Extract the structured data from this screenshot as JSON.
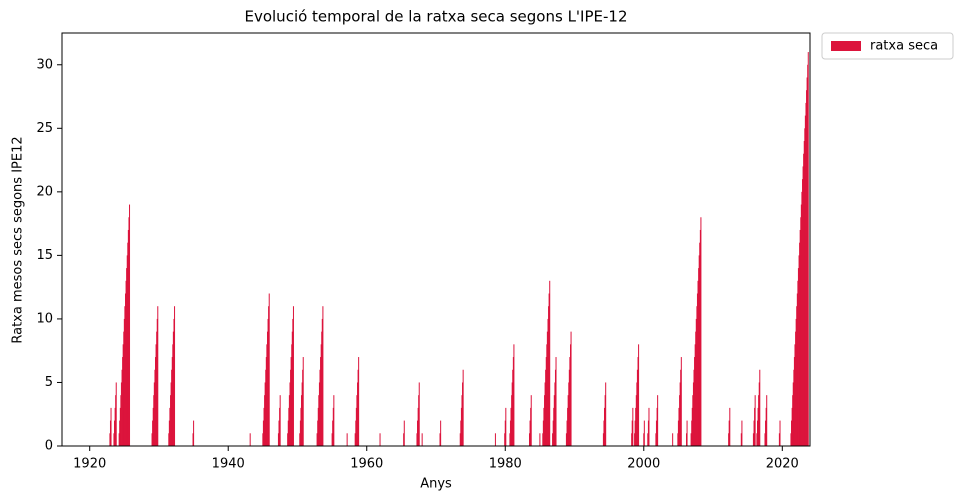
{
  "chart_data": {
    "type": "bar",
    "title": "Evolució temporal de la ratxa seca segons L'IPE-12",
    "x_label": "Anys",
    "y_label": "Ratxa mesos secs segons IPE12",
    "xlim": [
      1916,
      2024
    ],
    "ylim": [
      0,
      32.5
    ],
    "xticks": [
      1920,
      1940,
      1960,
      1980,
      2000,
      2020
    ],
    "yticks": [
      0,
      5,
      10,
      15,
      20,
      25,
      30
    ],
    "legend": "upper right outside",
    "x": [
      1922.92,
      1923.0,
      1923.08,
      1923.5,
      1923.58,
      1923.67,
      1923.75,
      1923.83,
      1924.25,
      1924.33,
      1924.42,
      1924.5,
      1924.58,
      1924.67,
      1924.75,
      1924.83,
      1924.92,
      1925.0,
      1925.08,
      1925.17,
      1925.25,
      1925.33,
      1925.42,
      1925.5,
      1925.58,
      1925.67,
      1925.75,
      1929.0,
      1929.08,
      1929.17,
      1929.25,
      1929.33,
      1929.42,
      1929.5,
      1929.58,
      1929.67,
      1929.75,
      1929.83,
      1931.42,
      1931.5,
      1931.58,
      1931.67,
      1931.75,
      1931.83,
      1931.92,
      1932.0,
      1932.08,
      1932.17,
      1932.25,
      1934.92,
      1935.0,
      1943.17,
      1945.0,
      1945.08,
      1945.17,
      1945.25,
      1945.33,
      1945.42,
      1945.5,
      1945.58,
      1945.67,
      1945.75,
      1945.83,
      1945.92,
      1947.25,
      1947.33,
      1947.42,
      1947.5,
      1948.58,
      1948.67,
      1948.75,
      1948.83,
      1948.92,
      1949.0,
      1949.08,
      1949.17,
      1949.25,
      1949.33,
      1949.42,
      1950.33,
      1950.42,
      1950.5,
      1950.58,
      1950.67,
      1950.75,
      1950.83,
      1952.83,
      1952.92,
      1953.0,
      1953.08,
      1953.17,
      1953.25,
      1953.33,
      1953.42,
      1953.5,
      1953.58,
      1953.67,
      1955.0,
      1955.08,
      1955.17,
      1955.25,
      1957.17,
      1958.33,
      1958.42,
      1958.5,
      1958.58,
      1958.67,
      1958.75,
      1958.83,
      1961.92,
      1965.33,
      1965.42,
      1967.25,
      1967.33,
      1967.42,
      1967.5,
      1967.58,
      1968.0,
      1970.58,
      1970.67,
      1973.5,
      1973.58,
      1973.67,
      1973.75,
      1973.83,
      1973.92,
      1978.58,
      1979.92,
      1980.0,
      1980.08,
      1980.67,
      1980.75,
      1980.83,
      1980.92,
      1981.0,
      1981.08,
      1981.17,
      1981.25,
      1983.5,
      1983.58,
      1983.67,
      1983.75,
      1985.0,
      1985.42,
      1985.5,
      1985.58,
      1985.67,
      1985.75,
      1985.83,
      1985.92,
      1986.0,
      1986.08,
      1986.17,
      1986.25,
      1986.33,
      1986.42,
      1986.83,
      1986.92,
      1987.0,
      1987.08,
      1987.17,
      1987.25,
      1987.33,
      1988.83,
      1988.92,
      1989.0,
      1989.08,
      1989.17,
      1989.25,
      1989.33,
      1989.42,
      1989.5,
      1994.17,
      1994.25,
      1994.33,
      1994.42,
      1994.5,
      1998.25,
      1998.33,
      1998.42,
      1998.67,
      1998.75,
      1998.83,
      1998.92,
      1999.0,
      1999.08,
      1999.17,
      1999.25,
      2000.0,
      2000.08,
      2000.58,
      2000.67,
      2000.75,
      2001.75,
      2001.83,
      2001.92,
      2002.0,
      2004.17,
      2004.92,
      2005.0,
      2005.08,
      2005.17,
      2005.25,
      2005.33,
      2005.42,
      2006.17,
      2006.25,
      2006.83,
      2006.92,
      2007.0,
      2007.08,
      2007.17,
      2007.25,
      2007.33,
      2007.42,
      2007.5,
      2007.58,
      2007.67,
      2007.75,
      2007.83,
      2007.92,
      2008.0,
      2008.08,
      2008.17,
      2008.25,
      2012.25,
      2012.33,
      2012.42,
      2014.08,
      2014.17,
      2015.83,
      2015.92,
      2016.0,
      2016.08,
      2016.33,
      2016.42,
      2016.5,
      2016.58,
      2016.67,
      2016.75,
      2017.5,
      2017.58,
      2017.67,
      2017.75,
      2019.58,
      2019.67,
      2021.25,
      2021.33,
      2021.42,
      2021.5,
      2021.58,
      2021.67,
      2021.75,
      2021.83,
      2021.92,
      2022.0,
      2022.08,
      2022.17,
      2022.25,
      2022.33,
      2022.42,
      2022.5,
      2022.58,
      2022.67,
      2022.75,
      2022.83,
      2022.92,
      2023.0,
      2023.08,
      2023.17,
      2023.25,
      2023.33,
      2023.42,
      2023.5,
      2023.58,
      2023.67,
      2023.75
    ],
    "series": [
      {
        "name": "ratxa seca",
        "color": "#dc143c",
        "values": [
          1,
          2,
          3,
          1,
          2,
          3,
          4,
          5,
          1,
          2,
          3,
          4,
          5,
          6,
          7,
          8,
          9,
          10,
          11,
          12,
          13,
          14,
          15,
          16,
          17,
          18,
          19,
          1,
          2,
          3,
          4,
          5,
          6,
          7,
          8,
          9,
          10,
          11,
          1,
          2,
          3,
          4,
          5,
          6,
          7,
          8,
          9,
          10,
          11,
          1,
          2,
          1,
          1,
          2,
          3,
          4,
          5,
          6,
          7,
          8,
          9,
          10,
          11,
          12,
          1,
          2,
          3,
          4,
          1,
          2,
          3,
          4,
          5,
          6,
          7,
          8,
          9,
          10,
          11,
          1,
          2,
          3,
          4,
          5,
          6,
          7,
          1,
          2,
          3,
          4,
          5,
          6,
          7,
          8,
          9,
          10,
          11,
          1,
          2,
          3,
          4,
          1,
          1,
          2,
          3,
          4,
          5,
          6,
          7,
          1,
          1,
          2,
          1,
          2,
          3,
          4,
          5,
          1,
          1,
          2,
          1,
          2,
          3,
          4,
          5,
          6,
          1,
          1,
          2,
          3,
          1,
          2,
          3,
          4,
          5,
          6,
          7,
          8,
          1,
          2,
          3,
          4,
          1,
          1,
          2,
          3,
          4,
          5,
          6,
          7,
          8,
          9,
          10,
          11,
          12,
          13,
          1,
          2,
          3,
          4,
          5,
          6,
          7,
          1,
          2,
          3,
          4,
          5,
          6,
          7,
          8,
          9,
          1,
          2,
          3,
          4,
          5,
          1,
          2,
          3,
          1,
          2,
          3,
          4,
          5,
          6,
          7,
          8,
          1,
          2,
          1,
          2,
          3,
          1,
          2,
          3,
          4,
          1,
          1,
          2,
          3,
          4,
          5,
          6,
          7,
          1,
          2,
          1,
          2,
          3,
          4,
          5,
          6,
          7,
          8,
          9,
          10,
          11,
          12,
          13,
          14,
          15,
          16,
          17,
          18,
          1,
          2,
          3,
          1,
          2,
          1,
          2,
          3,
          4,
          1,
          2,
          3,
          4,
          5,
          6,
          1,
          2,
          3,
          4,
          1,
          2,
          1,
          2,
          3,
          4,
          5,
          6,
          7,
          8,
          9,
          10,
          11,
          12,
          13,
          14,
          15,
          16,
          17,
          18,
          19,
          20,
          21,
          22,
          23,
          24,
          25,
          26,
          27,
          28,
          29,
          30,
          31
        ]
      }
    ]
  }
}
